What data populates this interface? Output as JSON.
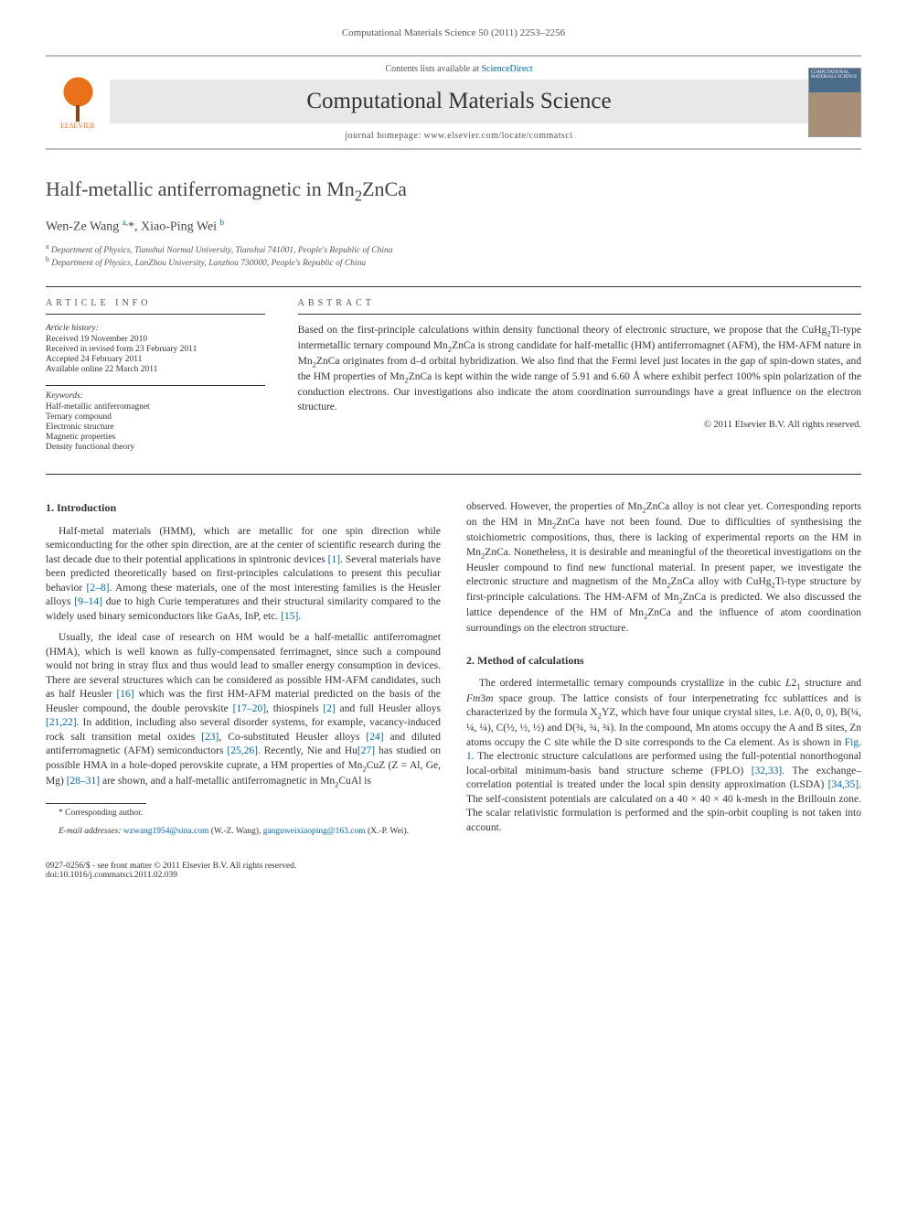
{
  "top_citation": "Computational Materials Science 50 (2011) 2253–2256",
  "header": {
    "publisher_name": "ELSEVIER",
    "contents_prefix": "Contents lists available at ",
    "contents_link": "ScienceDirect",
    "journal_name": "Computational Materials Science",
    "homepage_prefix": "journal homepage: ",
    "homepage_url": "www.elsevier.com/locate/commatsci",
    "cover_label": "COMPUTATIONAL MATERIALS SCIENCE"
  },
  "article": {
    "title_html": "Half-metallic antiferromagnetic in Mn<sub>2</sub>ZnCa",
    "authors_html": "Wen-Ze Wang <sup>a,</sup>*, Xiao-Ping Wei <sup>b</sup>",
    "affiliations": [
      {
        "sup": "a",
        "text": "Department of Physics, Tianshui Normal University, Tianshui 741001, People's Republic of China"
      },
      {
        "sup": "b",
        "text": "Department of Physics, LanZhou University, Lanzhou 730000, People's Republic of China"
      }
    ]
  },
  "info": {
    "label": "ARTICLE INFO",
    "history_label": "Article history:",
    "history": [
      "Received 19 November 2010",
      "Received in revised form 23 February 2011",
      "Accepted 24 February 2011",
      "Available online 22 March 2011"
    ],
    "keywords_label": "Keywords:",
    "keywords": [
      "Half-metallic antiferromagnet",
      "Ternary compound",
      "Electronic structure",
      "Magnetic properties",
      "Density functional theory"
    ]
  },
  "abstract": {
    "label": "ABSTRACT",
    "text_html": "Based on the first-principle calculations within density functional theory of electronic structure, we propose that the CuHg<sub>2</sub>Ti-type intermetallic ternary compound Mn<sub>2</sub>ZnCa is strong candidate for half-metallic (HM) antiferromagnet (AFM), the HM-AFM nature in Mn<sub>2</sub>ZnCa originates from d–d orbital hybridization. We also find that the Fermi level just locates in the gap of spin-down states, and the HM properties of Mn<sub>2</sub>ZnCa is kept within the wide range of 5.91 and 6.60 Å where exhibit perfect 100% spin polarization of the conduction electrons. Our investigations also indicate the atom coordination surroundings have a great influence on the electron structure.",
    "copyright": "© 2011 Elsevier B.V. All rights reserved."
  },
  "sections": {
    "s1": {
      "heading": "1. Introduction",
      "p1_html": "Half-metal materials (HMM), which are metallic for one spin direction while semiconducting for the other spin direction, are at the center of scientific research during the last decade due to their potential applications in spintronic devices <a href='#'>[1]</a>. Several materials have been predicted theoretically based on first-principles calculations to present this peculiar behavior <a href='#'>[2–8]</a>. Among these materials, one of the most interesting families is the Heusler alloys <a href='#'>[9–14]</a> due to high Curie temperatures and their structural similarity compared to the widely used binary semiconductors like GaAs, InP, etc. <a href='#'>[15]</a>.",
      "p2_html": "Usually, the ideal case of research on HM would be a half-metallic antiferromagnet (HMA), which is well known as fully-compensated ferrimagnet, since such a compound would not bring in stray flux and thus would lead to smaller energy consumption in devices. There are several structures which can be considered as possible HM-AFM candidates, such as half Heusler <a href='#'>[16]</a> which was the first HM-AFM material predicted on the basis of the Heusler compound, the double perovskite <a href='#'>[17–20]</a>, thiospinels <a href='#'>[2]</a> and full Heusler alloys <a href='#'>[21,22]</a>. In addition, including also several disorder systems, for example, vacancy-induced rock salt transition metal oxides <a href='#'>[23]</a>, Co-substituted Heusler alloys <a href='#'>[24]</a> and diluted antiferromagnetic (AFM) semiconductors <a href='#'>[25,26]</a>. Recently, Nie and Hu<a href='#'>[27]</a> has studied on possible HMA in a hole-doped perovskite cuprate, a HM properties of Mn<sub>2</sub>CuZ (Z = Al, Ge, Mg) <a href='#'>[28–31]</a> are shown, and a half-metallic antiferromagnetic in Mn<sub>2</sub>CuAl is",
      "p3_html": "observed. However, the properties of Mn<sub>2</sub>ZnCa alloy is not clear yet. Corresponding reports on the HM in Mn<sub>2</sub>ZnCa have not been found. Due to difficulties of synthesising the stoichiometric compositions, thus, there is lacking of experimental reports on the HM in Mn<sub>2</sub>ZnCa. Nonetheless, it is desirable and meaningful of the theoretical investigations on the Heusler compound to find new functional material. In present paper, we investigate the electronic structure and magnetism of the Mn<sub>2</sub>ZnCa alloy with CuHg<sub>2</sub>Ti-type structure by first-principle calculations. The HM-AFM of Mn<sub>2</sub>ZnCa is predicted. We also discussed the lattice dependence of the HM of Mn<sub>2</sub>ZnCa and the influence of atom coordination surroundings on the electron structure."
    },
    "s2": {
      "heading": "2. Method of calculations",
      "p1_html": "The ordered intermetallic ternary compounds crystallize in the cubic <i>L</i>2<sub>1</sub> structure and <i>Fm</i>3<i>m</i> space group. The lattice consists of four interpenetrating fcc sublattices and is characterized by the formula X<sub>2</sub>YZ, which have four unique crystal sites, i.e. A(0, 0, 0), B(¼, ¼, ¼), C(½, ½, ½) and D(¾, ¾, ¾). In the compound, Mn atoms occupy the A and B sites, Zn atoms occupy the C site while the D site corresponds to the Ca element. As is shown in <a href='#'>Fig. 1</a>. The electronic structure calculations are performed using the full-potential nonorthogonal local-orbital minimum-basis band structure scheme (FPLO) <a href='#'>[32,33]</a>. The exchange–correlation potential is treated under the local spin density approximation (LSDA) <a href='#'>[34,35]</a>. The self-consistent potentials are calculated on a 40 × 40 × 40 k-mesh in the Brillouin zone. The scalar relativistic formulation is performed and the spin-orbit coupling is not taken into account."
    }
  },
  "footnotes": {
    "corr": "* Corresponding author.",
    "email_label": "E-mail addresses:",
    "emails_html": " <a href='#'>wzwang1954@sina.com</a> (W.-Z. Wang), <a href='#'>ganguweixiaoping@163.com</a> (X.-P. Wei)."
  },
  "bottom": {
    "line1": "0927-0256/$ - see front matter © 2011 Elsevier B.V. All rights reserved.",
    "line2": "doi:10.1016/j.commatsci.2011.02.039"
  }
}
